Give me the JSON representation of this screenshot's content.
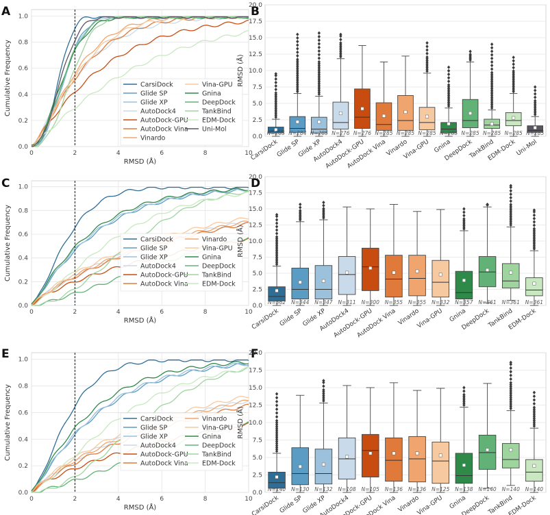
{
  "chart_data": [
    {
      "panel": "A",
      "type": "line",
      "xlabel": "RMSD (Å)",
      "ylabel": "Cumulative Frequency",
      "xlim": [
        0,
        10
      ],
      "ylim": [
        0,
        1.05
      ],
      "xticks": [
        "0",
        "2",
        "4",
        "6",
        "8",
        "10"
      ],
      "yticks": [
        "0.0",
        "0.2",
        "0.4",
        "0.6",
        "0.8",
        "1.0"
      ],
      "threshold": 2,
      "legend_columns": 2,
      "series": [
        {
          "name": "CarsiDock",
          "color": "#2e6e96",
          "f2": 0.91,
          "k": 2.6
        },
        {
          "name": "Glide SP",
          "color": "#5b9cc4",
          "f2": 0.75,
          "k": 2.2
        },
        {
          "name": "Glide XP",
          "color": "#9cc1dd",
          "f2": 0.74,
          "k": 2.2
        },
        {
          "name": "AutoDock4",
          "color": "#c9daea",
          "f2": 0.53,
          "k": 1.2
        },
        {
          "name": "AutoDock-GPU",
          "color": "#c84c10",
          "f2": 0.42,
          "k": 1.1
        },
        {
          "name": "AutoDock Vina",
          "color": "#e07a3a",
          "f2": 0.52,
          "k": 1.3
        },
        {
          "name": "Vinardo",
          "color": "#f0a56e",
          "f2": 0.56,
          "k": 1.4
        },
        {
          "name": "Vina-GPU",
          "color": "#f7c9a0",
          "f2": 0.53,
          "k": 1.4
        },
        {
          "name": "Gnina",
          "color": "#2f8a4a",
          "f2": 0.73,
          "k": 1.8
        },
        {
          "name": "DeepDock",
          "color": "#62b277",
          "f2": 0.74,
          "k": 2.0
        },
        {
          "name": "TankBind",
          "color": "#9fd49f",
          "f2": 0.6,
          "k": 2.4
        },
        {
          "name": "EDM-Dock",
          "color": "#c9e8c2",
          "f2": 0.3,
          "k": 1.1
        },
        {
          "name": "Uni-Mol",
          "color": "#5a5361",
          "f2": 0.82,
          "k": 2.2
        }
      ]
    },
    {
      "panel": "B",
      "type": "box",
      "ylabel": "RMSD (Å)",
      "ylim": [
        0,
        20
      ],
      "yticks": [
        "0.0",
        "2.5",
        "5.0",
        "7.5",
        "10.0",
        "12.5",
        "15.0",
        "17.5",
        "20.0"
      ],
      "categories": [
        "CarsiDock",
        "Glide SP",
        "Glide XP",
        "AutoDock4",
        "AutoDock-GPU",
        "AutoDock Vina",
        "Vinardo",
        "Vina-GPU",
        "Gnina",
        "DeepDock",
        "TankBind",
        "EDM-Dock",
        "Uni-Mol"
      ],
      "colors": [
        "#2e6e96",
        "#5b9cc4",
        "#9cc1dd",
        "#c9daea",
        "#c84c10",
        "#e07a3a",
        "#f0a56e",
        "#f7c9a0",
        "#2f8a4a",
        "#62b277",
        "#9fd49f",
        "#c9e8c2",
        "#5a5361"
      ],
      "n_labels": [
        "N=285",
        "N=284",
        "N=285",
        "N=276",
        "N=276",
        "N=285",
        "N=285",
        "N=285",
        "N=285",
        "N=285",
        "N=285",
        "N=285",
        "N=285"
      ],
      "boxes": [
        {
          "wlo": 0,
          "q1": 0.5,
          "med": 0.8,
          "q3": 1.4,
          "whi": 2.6,
          "mean": 1.0,
          "fmax": 9.5
        },
        {
          "wlo": 0,
          "q1": 0.6,
          "med": 1.2,
          "q3": 3.0,
          "whi": 6.5,
          "mean": 2.2,
          "fmax": 15.5
        },
        {
          "wlo": 0,
          "q1": 0.5,
          "med": 1.1,
          "q3": 2.9,
          "whi": 6.1,
          "mean": 2.2,
          "fmax": 15.7
        },
        {
          "wlo": 0,
          "q1": 1.1,
          "med": 2.1,
          "q3": 5.2,
          "whi": 11.8,
          "mean": 3.5,
          "fmax": 15.5
        },
        {
          "wlo": 0,
          "q1": 1.2,
          "med": 2.9,
          "q3": 7.2,
          "whi": 13.8,
          "mean": 4.2,
          "fmax": 13.8
        },
        {
          "wlo": 0,
          "q1": 0.9,
          "med": 1.8,
          "q3": 5.1,
          "whi": 11.3,
          "mean": 3.1,
          "fmax": 11.3
        },
        {
          "wlo": 0,
          "q1": 0.9,
          "med": 2.4,
          "q3": 6.2,
          "whi": 12.2,
          "mean": 3.7,
          "fmax": 12.2
        },
        {
          "wlo": 0,
          "q1": 1.0,
          "med": 2.1,
          "q3": 4.4,
          "whi": 9.6,
          "mean": 3.0,
          "fmax": 14.2
        },
        {
          "wlo": 0,
          "q1": 0.5,
          "med": 1.1,
          "q3": 2.1,
          "whi": 4.3,
          "mean": 1.9,
          "fmax": 10.5
        },
        {
          "wlo": 0,
          "q1": 1.3,
          "med": 2.4,
          "q3": 5.6,
          "whi": 11.3,
          "mean": 3.5,
          "fmax": 12.9
        },
        {
          "wlo": 0,
          "q1": 1.2,
          "med": 1.7,
          "q3": 2.6,
          "whi": 4.0,
          "mean": 1.9,
          "fmax": 14.0
        },
        {
          "wlo": 0,
          "q1": 1.6,
          "med": 2.4,
          "q3": 3.6,
          "whi": 6.5,
          "mean": 2.8,
          "fmax": 12.0
        },
        {
          "wlo": 0,
          "q1": 0.6,
          "med": 0.9,
          "q3": 1.6,
          "whi": 3.0,
          "mean": 1.3,
          "fmax": 7.5
        }
      ]
    },
    {
      "panel": "C",
      "type": "line",
      "xlabel": "RMSD (Å)",
      "ylabel": "Cumulative Frequency",
      "xlim": [
        0,
        10
      ],
      "ylim": [
        0,
        1.05
      ],
      "xticks": [
        "0",
        "2",
        "4",
        "6",
        "8",
        "10"
      ],
      "yticks": [
        "0.0",
        "0.2",
        "0.4",
        "0.6",
        "0.8",
        "1.0"
      ],
      "threshold": 2,
      "legend_columns": 2,
      "series": [
        {
          "name": "CarsiDock",
          "color": "#2e6e96",
          "f2": 0.66,
          "k": 1.4
        },
        {
          "name": "Glide SP",
          "color": "#5b9cc4",
          "f2": 0.46,
          "k": 1.1
        },
        {
          "name": "Glide XP",
          "color": "#9cc1dd",
          "f2": 0.47,
          "k": 1.1
        },
        {
          "name": "AutoDock4",
          "color": "#c9daea",
          "f2": 0.25,
          "k": 0.9
        },
        {
          "name": "AutoDock-GPU",
          "color": "#c84c10",
          "f2": 0.2,
          "k": 0.8
        },
        {
          "name": "AutoDock Vina",
          "color": "#e07a3a",
          "f2": 0.24,
          "k": 0.9
        },
        {
          "name": "Vinardo",
          "color": "#f0a56e",
          "f2": 0.25,
          "k": 0.9
        },
        {
          "name": "Vina-GPU",
          "color": "#f7c9a0",
          "f2": 0.27,
          "k": 0.9
        },
        {
          "name": "Gnina",
          "color": "#2f8a4a",
          "f2": 0.49,
          "k": 1.1
        },
        {
          "name": "DeepDock",
          "color": "#62b277",
          "f2": 0.1,
          "k": 1.3
        },
        {
          "name": "TankBind",
          "color": "#9fd49f",
          "f2": 0.14,
          "k": 1.9
        },
        {
          "name": "EDM-Dock",
          "color": "#c9e8c2",
          "f2": 0.3,
          "k": 1.3
        }
      ]
    },
    {
      "panel": "D",
      "type": "box",
      "ylabel": "RMSD (Å)",
      "ylim": [
        0,
        20
      ],
      "yticks": [
        "0.0",
        "2.5",
        "5.0",
        "7.5",
        "10.0",
        "12.5",
        "15.0",
        "17.5",
        "20.0"
      ],
      "categories": [
        "CarsiDock",
        "Glide SP",
        "Glide XP",
        "AutoDock4",
        "AutoDock-GPU",
        "AutoDock Vina",
        "Vinardo",
        "Vina-GPU",
        "Gnina",
        "DeepDock",
        "TankBind",
        "EDM-Dock"
      ],
      "colors": [
        "#2e6e96",
        "#5b9cc4",
        "#9cc1dd",
        "#c9daea",
        "#c84c10",
        "#e07a3a",
        "#f0a56e",
        "#f7c9a0",
        "#2f8a4a",
        "#62b277",
        "#9fd49f",
        "#c9e8c2"
      ],
      "n_labels": [
        "N=362",
        "N=344",
        "N=347",
        "N=311",
        "N=300",
        "N=355",
        "N=355",
        "N=332",
        "N=357",
        "N=361",
        "N=361",
        "N=361"
      ],
      "boxes": [
        {
          "wlo": 0,
          "q1": 0.7,
          "med": 1.4,
          "q3": 2.9,
          "whi": 6.1,
          "mean": 2.3,
          "fmax": 14.1
        },
        {
          "wlo": 0,
          "q1": 1.0,
          "med": 2.5,
          "q3": 5.8,
          "whi": 13.0,
          "mean": 3.6,
          "fmax": 15.7
        },
        {
          "wlo": 0,
          "q1": 1.0,
          "med": 2.5,
          "q3": 6.2,
          "whi": 13.3,
          "mean": 3.8,
          "fmax": 16.0
        },
        {
          "wlo": 0,
          "q1": 1.7,
          "med": 4.8,
          "q3": 7.6,
          "whi": 15.3,
          "mean": 5.1,
          "fmax": 15.3
        },
        {
          "wlo": 0,
          "q1": 2.3,
          "med": 6.0,
          "q3": 8.9,
          "whi": 15.0,
          "mean": 5.8,
          "fmax": 15.0
        },
        {
          "wlo": 0,
          "q1": 1.3,
          "med": 4.1,
          "q3": 7.8,
          "whi": 15.7,
          "mean": 5.1,
          "fmax": 15.7
        },
        {
          "wlo": 0,
          "q1": 1.5,
          "med": 4.2,
          "q3": 7.8,
          "whi": 14.6,
          "mean": 5.3,
          "fmax": 14.6
        },
        {
          "wlo": 0,
          "q1": 1.3,
          "med": 3.6,
          "q3": 7.0,
          "whi": 14.9,
          "mean": 4.8,
          "fmax": 14.9
        },
        {
          "wlo": 0,
          "q1": 1.0,
          "med": 2.0,
          "q3": 5.3,
          "whi": 11.6,
          "mean": 3.9,
          "fmax": 15.0
        },
        {
          "wlo": 0.4,
          "q1": 2.9,
          "med": 5.2,
          "q3": 7.6,
          "whi": 15.3,
          "mean": 5.5,
          "fmax": 15.7
        },
        {
          "wlo": 0.8,
          "q1": 2.7,
          "med": 3.8,
          "q3": 6.5,
          "whi": 12.2,
          "mean": 5.1,
          "fmax": 18.6
        },
        {
          "wlo": 0,
          "q1": 1.5,
          "med": 2.4,
          "q3": 4.3,
          "whi": 8.5,
          "mean": 3.4,
          "fmax": 14.8
        }
      ]
    },
    {
      "panel": "E",
      "type": "line",
      "xlabel": "RMSD (Å)",
      "ylabel": "Cumulative Frequency",
      "xlim": [
        0,
        10
      ],
      "ylim": [
        0,
        1.05
      ],
      "xticks": [
        "0",
        "2",
        "4",
        "6",
        "8",
        "10"
      ],
      "yticks": [
        "0.0",
        "0.2",
        "0.4",
        "0.6",
        "0.8",
        "1.0"
      ],
      "threshold": 2,
      "legend_columns": 2,
      "series": [
        {
          "name": "CarsiDock",
          "color": "#2e6e96",
          "f2": 0.65,
          "k": 1.4
        },
        {
          "name": "Glide SP",
          "color": "#5b9cc4",
          "f2": 0.43,
          "k": 1.1
        },
        {
          "name": "Glide XP",
          "color": "#9cc1dd",
          "f2": 0.44,
          "k": 1.1
        },
        {
          "name": "AutoDock4",
          "color": "#c9daea",
          "f2": 0.24,
          "k": 0.9
        },
        {
          "name": "AutoDock-GPU",
          "color": "#c84c10",
          "f2": 0.18,
          "k": 0.8
        },
        {
          "name": "AutoDock Vina",
          "color": "#e07a3a",
          "f2": 0.22,
          "k": 0.9
        },
        {
          "name": "Vinardo",
          "color": "#f0a56e",
          "f2": 0.24,
          "k": 0.9
        },
        {
          "name": "Vina-GPU",
          "color": "#f7c9a0",
          "f2": 0.26,
          "k": 0.9
        },
        {
          "name": "Gnina",
          "color": "#2f8a4a",
          "f2": 0.48,
          "k": 1.1
        },
        {
          "name": "DeepDock",
          "color": "#62b277",
          "f2": 0.09,
          "k": 1.3
        },
        {
          "name": "TankBind",
          "color": "#9fd49f",
          "f2": 0.12,
          "k": 1.9
        },
        {
          "name": "EDM-Dock",
          "color": "#c9e8c2",
          "f2": 0.28,
          "k": 1.3
        }
      ]
    },
    {
      "panel": "F",
      "type": "box",
      "ylabel": "RMSD (Å)",
      "ylim": [
        0,
        20
      ],
      "yticks": [
        "0.0",
        "2.5",
        "5.0",
        "7.5",
        "10.0",
        "12.5",
        "15.0",
        "17.5",
        "20.0"
      ],
      "categories": [
        "CarsiDock",
        "Glide SP",
        "Glide XP",
        "AutoDock4",
        "AutoDock-GPU",
        "AutoDock Vina",
        "Vinardo",
        "Vina-GPU",
        "Gnina",
        "DeepDock",
        "TankBind",
        "EDM-Dock"
      ],
      "colors": [
        "#2e6e96",
        "#5b9cc4",
        "#9cc1dd",
        "#c9daea",
        "#c84c10",
        "#e07a3a",
        "#f0a56e",
        "#f7c9a0",
        "#2f8a4a",
        "#62b277",
        "#9fd49f",
        "#c9e8c2"
      ],
      "n_labels": [
        "N=140",
        "N=130",
        "N=132",
        "N=108",
        "N=105",
        "N=136",
        "N=136",
        "N=125",
        "N=138",
        "N=140",
        "N=140",
        "N=140"
      ],
      "boxes": [
        {
          "wlo": 0,
          "q1": 0.6,
          "med": 1.4,
          "q3": 2.9,
          "whi": 5.6,
          "mean": 2.2,
          "fmax": 14.1
        },
        {
          "wlo": 0,
          "q1": 1.1,
          "med": 2.7,
          "q3": 6.4,
          "whi": 13.9,
          "mean": 3.7,
          "fmax": 13.9
        },
        {
          "wlo": 0,
          "q1": 1.2,
          "med": 2.7,
          "q3": 6.2,
          "whi": 12.8,
          "mean": 4.0,
          "fmax": 16.0
        },
        {
          "wlo": 0,
          "q1": 1.9,
          "med": 4.8,
          "q3": 7.8,
          "whi": 15.3,
          "mean": 5.1,
          "fmax": 15.3
        },
        {
          "wlo": 0,
          "q1": 2.2,
          "med": 6.0,
          "q3": 8.3,
          "whi": 15.0,
          "mean": 5.6,
          "fmax": 15.0
        },
        {
          "wlo": 0,
          "q1": 1.6,
          "med": 4.6,
          "q3": 7.8,
          "whi": 15.7,
          "mean": 5.6,
          "fmax": 15.7
        },
        {
          "wlo": 0,
          "q1": 1.5,
          "med": 4.8,
          "q3": 8.0,
          "whi": 14.6,
          "mean": 5.6,
          "fmax": 14.6
        },
        {
          "wlo": 0,
          "q1": 1.3,
          "med": 4.5,
          "q3": 7.2,
          "whi": 14.9,
          "mean": 5.3,
          "fmax": 14.9
        },
        {
          "wlo": 0,
          "q1": 1.3,
          "med": 2.4,
          "q3": 5.6,
          "whi": 12.2,
          "mean": 3.9,
          "fmax": 15.0
        },
        {
          "wlo": 0.6,
          "q1": 3.3,
          "med": 5.7,
          "q3": 8.2,
          "whi": 15.6,
          "mean": 6.1,
          "fmax": 15.6
        },
        {
          "wlo": 1.0,
          "q1": 3.5,
          "med": 4.7,
          "q3": 7.0,
          "whi": 11.7,
          "mean": 6.1,
          "fmax": 18.6
        },
        {
          "wlo": 0,
          "q1": 1.6,
          "med": 2.9,
          "q3": 4.7,
          "whi": 9.2,
          "mean": 3.8,
          "fmax": 14.3
        }
      ]
    }
  ]
}
